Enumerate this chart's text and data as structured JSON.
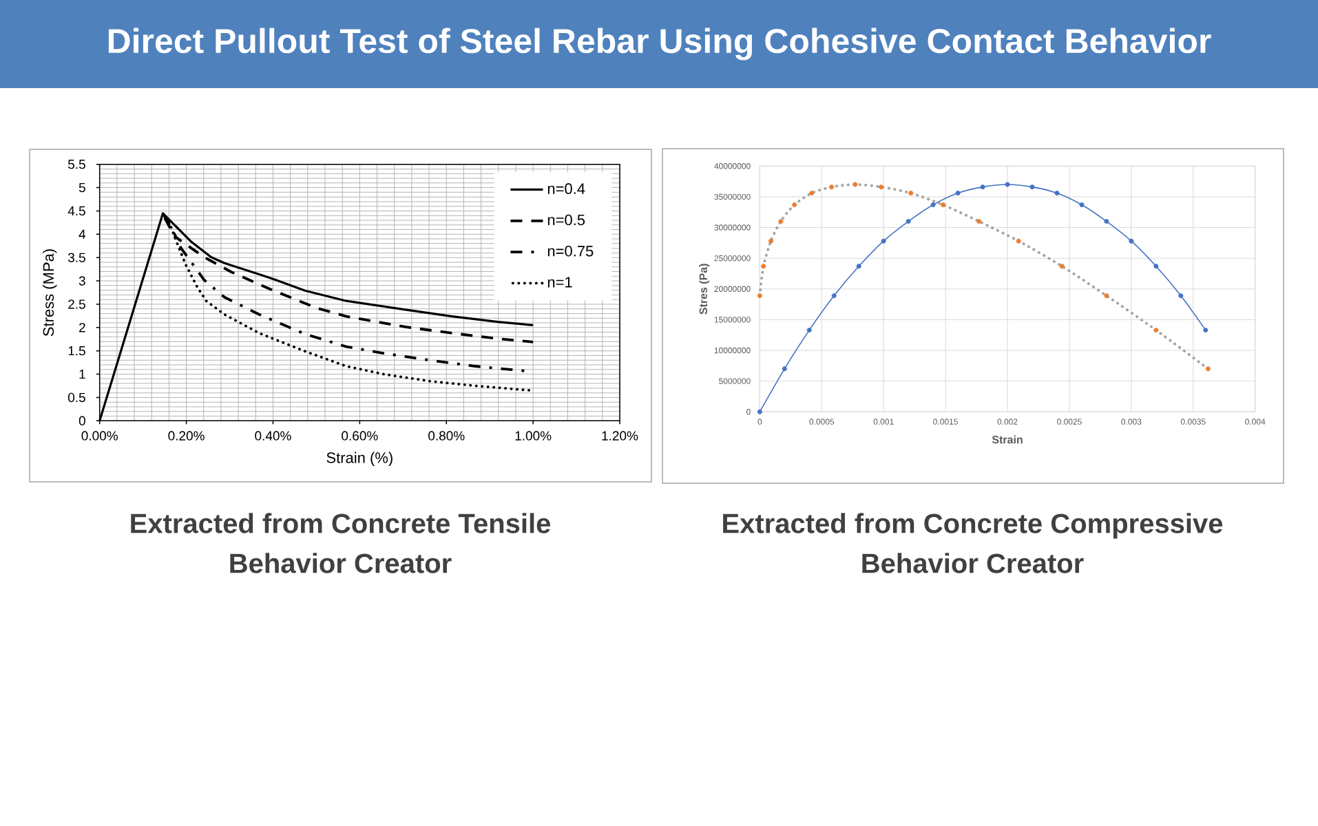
{
  "chart_data": [
    {
      "type": "line",
      "title": "Direct Pullout Test of Steel Rebar Using Cohesive Contact Behavior",
      "xlabel": "Strain (%)",
      "ylabel": "Stress (MPa)",
      "xlim": [
        0,
        1.2
      ],
      "ylim": [
        0,
        5.5
      ],
      "xticks": [
        {
          "value": 0,
          "label": "0.00%"
        },
        {
          "value": 0.2,
          "label": "0.20%"
        },
        {
          "value": 0.4,
          "label": "0.40%"
        },
        {
          "value": 0.6,
          "label": "0.60%"
        },
        {
          "value": 0.8,
          "label": "0.80%"
        },
        {
          "value": 1.0,
          "label": "1.00%"
        },
        {
          "value": 1.2,
          "label": "1.20%"
        }
      ],
      "yticks": [
        0,
        0.5,
        1,
        1.5,
        2,
        2.5,
        3,
        3.5,
        4,
        4.5,
        5,
        5.5
      ],
      "grid": true,
      "legend": "top right",
      "series": [
        {
          "name": "n=0.4",
          "color": "#000000",
          "line_style": "solid",
          "x": [
            0,
            0.146,
            0.21,
            0.257,
            0.288,
            0.368,
            0.4,
            0.474,
            0.569,
            0.708,
            0.813,
            0.919,
            1.0
          ],
          "values": [
            0,
            4.45,
            3.85,
            3.51,
            3.38,
            3.14,
            3.04,
            2.79,
            2.57,
            2.38,
            2.24,
            2.12,
            2.05
          ]
        },
        {
          "name": "n=0.5",
          "color": "#000000",
          "line_style": "dashed",
          "x": [
            0.148,
            0.177,
            0.241,
            0.304,
            0.394,
            0.5,
            0.569,
            0.708,
            0.813,
            0.919,
            1.0
          ],
          "values": [
            4.42,
            3.93,
            3.51,
            3.19,
            2.82,
            2.42,
            2.24,
            2.01,
            1.88,
            1.76,
            1.69
          ]
        },
        {
          "name": "n=0.75",
          "color": "#000000",
          "line_style": "dashdot",
          "x": [
            0.15,
            0.188,
            0.241,
            0.288,
            0.368,
            0.474,
            0.569,
            0.647,
            0.761,
            0.867,
            0.98
          ],
          "values": [
            4.35,
            3.7,
            3.02,
            2.65,
            2.28,
            1.86,
            1.59,
            1.46,
            1.3,
            1.17,
            1.07
          ]
        },
        {
          "name": "n=1",
          "color": "#000000",
          "line_style": "dotted",
          "x": [
            0.148,
            0.161,
            0.177,
            0.198,
            0.225,
            0.246,
            0.288,
            0.368,
            0.474,
            0.569,
            0.655,
            0.761,
            0.867,
            0.996
          ],
          "values": [
            4.4,
            4.25,
            3.85,
            3.36,
            2.87,
            2.57,
            2.28,
            1.88,
            1.49,
            1.17,
            1.0,
            0.85,
            0.75,
            0.65
          ]
        }
      ],
      "annotations": [
        "Extracted from Concrete Tensile Behavior Creator"
      ]
    },
    {
      "type": "line",
      "xlabel": "Strain",
      "ylabel": "Stres (Pa)",
      "xlim": [
        0,
        0.004
      ],
      "ylim": [
        0,
        40000000
      ],
      "xticks": [
        0,
        0.0005,
        0.001,
        0.0015,
        0.002,
        0.0025,
        0.003,
        0.0035,
        0.004
      ],
      "yticks": [
        0,
        5000000,
        10000000,
        15000000,
        20000000,
        25000000,
        30000000,
        35000000,
        40000000
      ],
      "grid": true,
      "series": [
        {
          "color": "#4472c4",
          "marker": "circle",
          "line_style": "solid",
          "x": [
            0,
            0.0002,
            0.0004,
            0.0006,
            0.0008,
            0.001,
            0.0012,
            0.0014,
            0.0016,
            0.0018,
            0.002,
            0.0022,
            0.0024,
            0.0026,
            0.0028,
            0.003,
            0.0032,
            0.0034,
            0.0036
          ],
          "values": [
            0,
            7000000,
            13300000,
            18900000,
            23700000,
            27800000,
            31000000,
            33700000,
            35600000,
            36600000,
            37000000,
            36600000,
            35600000,
            33700000,
            31000000,
            27800000,
            23700000,
            18900000,
            13300000
          ]
        },
        {
          "color": "#a5a5a5",
          "line_style": "dotted",
          "x": [
            0,
            3e-05,
            9e-05,
            0.00017,
            0.00028,
            0.00042,
            0.00058,
            0.00077,
            0.00098,
            0.00122,
            0.00148,
            0.00177,
            0.00209,
            0.00244,
            0.0028,
            0.0032,
            0.00362
          ],
          "values": [
            18900000,
            23700000,
            27800000,
            31000000,
            33700000,
            35600000,
            36600000,
            37000000,
            36600000,
            35600000,
            33700000,
            31000000,
            27800000,
            23700000,
            18900000,
            13300000,
            7000000
          ]
        },
        {
          "type": "scatter",
          "color": "#ed7d31",
          "marker": "circle",
          "x": [
            0,
            3e-05,
            9e-05,
            0.00017,
            0.00028,
            0.00042,
            0.00058,
            0.00077,
            0.00098,
            0.00122,
            0.00148,
            0.00177,
            0.00209,
            0.00244,
            0.0028,
            0.0032,
            0.00362
          ],
          "values": [
            18900000,
            23700000,
            27800000,
            31000000,
            33700000,
            35600000,
            36600000,
            37000000,
            36600000,
            35600000,
            33700000,
            31000000,
            27800000,
            23700000,
            18900000,
            13300000,
            7000000
          ]
        }
      ],
      "annotations": [
        "Extracted from Concrete Compressive Behavior Creator"
      ]
    }
  ]
}
